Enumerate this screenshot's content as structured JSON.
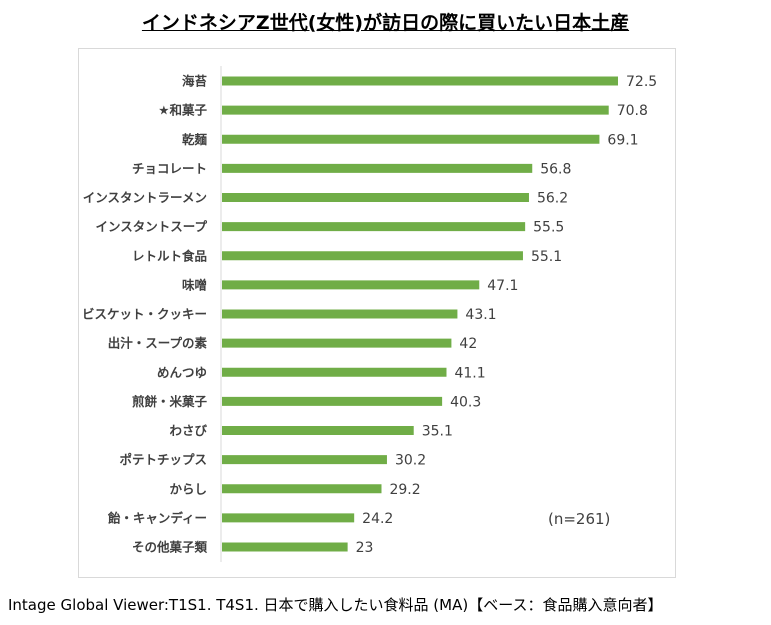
{
  "chart_data": {
    "type": "bar",
    "orientation": "horizontal",
    "title": "インドネシアZ世代(女性)が訪日の際に買いたい日本土産",
    "categories": [
      "海苔",
      "★和菓子",
      "乾麺",
      "チョコレート",
      "インスタントラーメン",
      "インスタントスープ",
      "レトルト食品",
      "味噌",
      "ビスケット・クッキー",
      "出汁・スープの素",
      "めんつゆ",
      "煎餅・米菓子",
      "わさび",
      "ポテトチップス",
      "からし",
      "飴・キャンディー",
      "その他菓子類"
    ],
    "values": [
      72.5,
      70.8,
      69.1,
      56.8,
      56.2,
      55.5,
      55.1,
      47.1,
      43.1,
      42,
      41.1,
      40.3,
      35.1,
      30.2,
      29.2,
      24.2,
      23
    ],
    "bar_color": "#70ad47",
    "xlim": [
      0,
      100
    ],
    "grid": false,
    "annotation": "(n=261)"
  },
  "footer": "Intage Global Viewer:T1S1. T4S1. 日本で購入したい食料品 (MA)【ベース：食品購入意向者】"
}
